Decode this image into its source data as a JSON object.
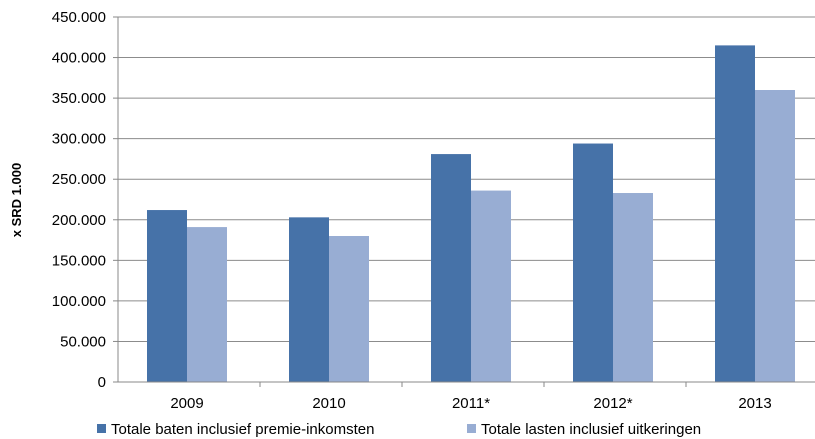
{
  "chart_data": {
    "type": "bar",
    "categories": [
      "2009",
      "2010",
      "2011*",
      "2012*",
      "2013"
    ],
    "series": [
      {
        "name": "Totale baten inclusief premie-inkomsten",
        "color": "#4672A8",
        "values": [
          212000,
          203000,
          281000,
          294000,
          415000
        ]
      },
      {
        "name": "Totale lasten inclusief uitkeringen",
        "color": "#98ADD3",
        "values": [
          191000,
          180000,
          236000,
          233000,
          360000
        ]
      }
    ],
    "ylabel": "x SRD 1.000",
    "xlabel": "",
    "ylim": [
      0,
      450000
    ],
    "yticks": [
      "0",
      "50.000",
      "100.000",
      "150.000",
      "200.000",
      "250.000",
      "300.000",
      "350.000",
      "400.000",
      "450.000"
    ],
    "grid": true,
    "legend": "bottom"
  }
}
